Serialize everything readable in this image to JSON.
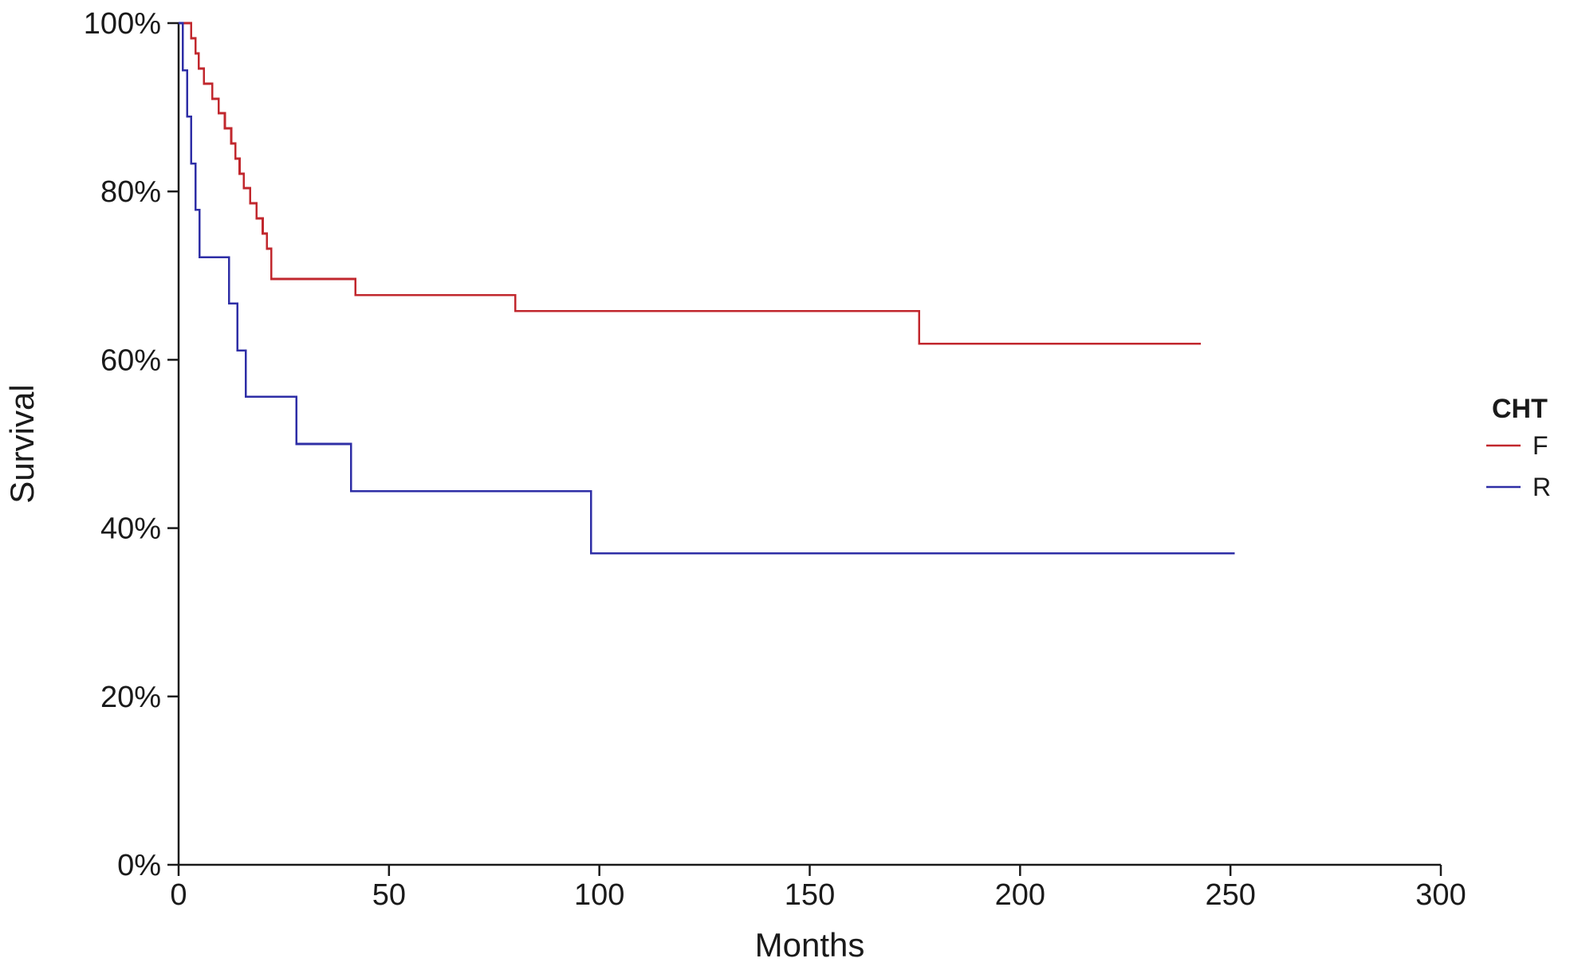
{
  "chart_data": {
    "type": "line",
    "subtype": "kaplan-meier step",
    "title": "",
    "xlabel": "Months",
    "ylabel": "Survival",
    "xlim": [
      0,
      300
    ],
    "ylim": [
      0,
      100
    ],
    "x_ticks": [
      0,
      50,
      100,
      150,
      200,
      250,
      300
    ],
    "x_tick_labels": [
      "0",
      "50",
      "100",
      "150",
      "200",
      "250",
      "300"
    ],
    "y_ticks": [
      0,
      20,
      40,
      60,
      80,
      100
    ],
    "y_tick_labels": [
      "0%",
      "20%",
      "40%",
      "60%",
      "80%",
      "100%"
    ],
    "grid": false,
    "legend": {
      "title": "CHT",
      "placement": "right",
      "entries": [
        "F",
        "R"
      ]
    },
    "series": [
      {
        "name": "F",
        "color": "#c1272d",
        "x": [
          0,
          3,
          4,
          4.8,
          6,
          8,
          9.5,
          11,
          12.5,
          13.5,
          14.5,
          15.5,
          17,
          18.5,
          20,
          21,
          22,
          42,
          80,
          176,
          243
        ],
        "y": [
          100,
          98.2,
          96.4,
          94.6,
          92.8,
          91,
          89.3,
          87.5,
          85.7,
          83.9,
          82.1,
          80.4,
          78.6,
          76.8,
          75,
          73.2,
          69.6,
          67.7,
          65.8,
          61.9,
          61.9
        ]
      },
      {
        "name": "R",
        "color": "#2e2ea6",
        "x": [
          0,
          1,
          2,
          3,
          4,
          5,
          7,
          12,
          14,
          16,
          28,
          41,
          98,
          251
        ],
        "y": [
          100,
          94.4,
          88.9,
          83.3,
          77.8,
          72.2,
          72.2,
          66.7,
          61.1,
          55.6,
          50,
          44.4,
          37,
          37
        ]
      }
    ]
  }
}
